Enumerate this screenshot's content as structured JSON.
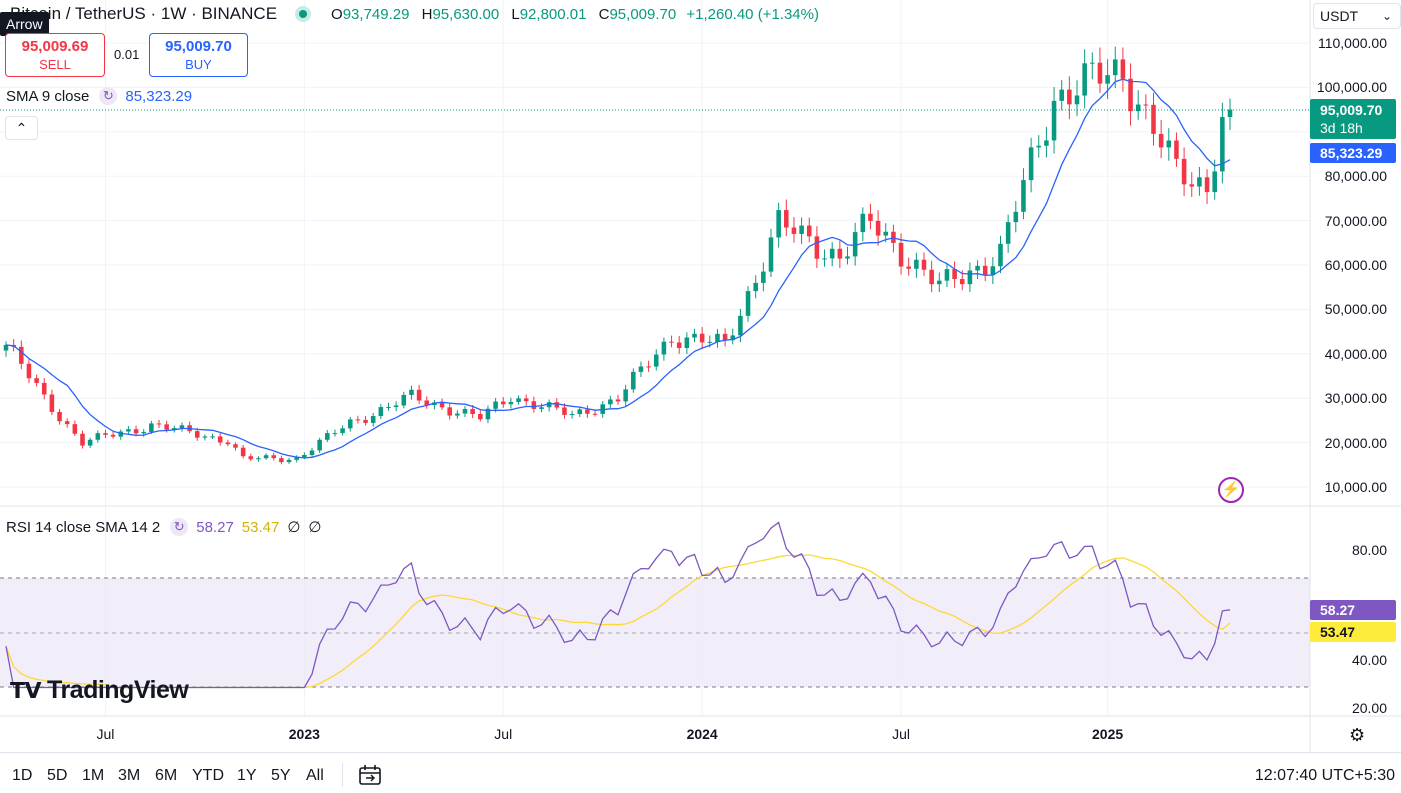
{
  "header": {
    "symbol_title": "Bitcoin / TetherUS · 1W · BINANCE",
    "ohlc": {
      "o_label": "O",
      "o": "93,749.29",
      "h_label": "H",
      "h": "95,630.00",
      "l_label": "L",
      "l": "92,800.01",
      "c_label": "C",
      "c": "95,009.70",
      "change": "+1,260.40 (+1.34%)"
    },
    "tooltip": "Arrow",
    "sell_price": "95,009.69",
    "sell_label": "SELL",
    "spread": "0.01",
    "buy_price": "95,009.70",
    "buy_label": "BUY",
    "currency": "USDT",
    "collapse_icon": "chevron-up-icon"
  },
  "sma_legend": {
    "label": "SMA 9 close",
    "value": "85,323.29"
  },
  "rsi_legend": {
    "label": "RSI 14 close SMA 14 2",
    "rsi": "58.27",
    "rsi_ma": "53.47",
    "extra1": "∅",
    "extra2": "∅"
  },
  "price_axis": [
    "110,000.00",
    "100,000.00",
    "80,000.00",
    "70,000.00",
    "60,000.00",
    "50,000.00",
    "40,000.00",
    "30,000.00",
    "20,000.00",
    "10,000.00"
  ],
  "price_tags": {
    "last": "95,009.70",
    "countdown": "3d 18h",
    "sma": "85,323.29",
    "rsi": "58.27",
    "rsi_ma": "53.47"
  },
  "rsi_axis": [
    "80.00",
    "40.00",
    "20.00"
  ],
  "x_axis": [
    {
      "label": "Jul",
      "bold": false
    },
    {
      "label": "2023",
      "bold": true
    },
    {
      "label": "Jul",
      "bold": false
    },
    {
      "label": "2024",
      "bold": true
    },
    {
      "label": "Jul",
      "bold": false
    },
    {
      "label": "2025",
      "bold": true
    }
  ],
  "ranges": [
    "1D",
    "5D",
    "1M",
    "3M",
    "6M",
    "YTD",
    "1Y",
    "5Y",
    "All"
  ],
  "clock": "12:07:40 UTC+5:30",
  "logo": "TradingView",
  "colors": {
    "up": "#089981",
    "down": "#f23645",
    "sma": "#2962ff",
    "rsi": "#7e57c2",
    "rsi_ma": "#fdd835",
    "rsi_band": "#ede7f6"
  },
  "chart_data": {
    "type": "candlestick",
    "title": "Bitcoin / TetherUS · 1W · BINANCE",
    "y_range": [
      7000,
      115000
    ],
    "rsi_range": [
      20,
      85
    ],
    "rsi_bands": [
      70,
      50,
      30
    ],
    "anchors": [
      {
        "date": "2022-04-04",
        "close": 42000
      },
      {
        "date": "2022-05-09",
        "close": 30000
      },
      {
        "date": "2022-06-13",
        "close": 20000
      },
      {
        "date": "2022-08-15",
        "close": 24000
      },
      {
        "date": "2022-10-24",
        "close": 20500
      },
      {
        "date": "2022-11-07",
        "close": 16300
      },
      {
        "date": "2022-12-26",
        "close": 16500
      },
      {
        "date": "2023-02-13",
        "close": 24500
      },
      {
        "date": "2023-04-10",
        "close": 30300
      },
      {
        "date": "2023-06-12",
        "close": 25500
      },
      {
        "date": "2023-07-10",
        "close": 30500
      },
      {
        "date": "2023-09-04",
        "close": 26000
      },
      {
        "date": "2023-10-16",
        "close": 30000
      },
      {
        "date": "2023-12-04",
        "close": 44000
      },
      {
        "date": "2024-01-22",
        "close": 42000
      },
      {
        "date": "2024-03-11",
        "close": 69000
      },
      {
        "date": "2024-05-06",
        "close": 62000
      },
      {
        "date": "2024-06-03",
        "close": 69500
      },
      {
        "date": "2024-08-05",
        "close": 55000
      },
      {
        "date": "2024-09-30",
        "close": 62500
      },
      {
        "date": "2024-11-18",
        "close": 98000
      },
      {
        "date": "2025-01-20",
        "close": 104000
      },
      {
        "date": "2025-03-10",
        "close": 80500
      },
      {
        "date": "2025-04-07",
        "close": 78000
      },
      {
        "date": "2025-04-21",
        "close": 93750
      },
      {
        "date": "2025-04-28",
        "close": 95009.7
      }
    ],
    "sma": {
      "label": "SMA 9 close",
      "last": 85323.29
    },
    "rsi": {
      "label": "RSI 14 close SMA 14 2",
      "last": 58.27,
      "ma_last": 53.47
    },
    "last_close": 95009.7
  }
}
